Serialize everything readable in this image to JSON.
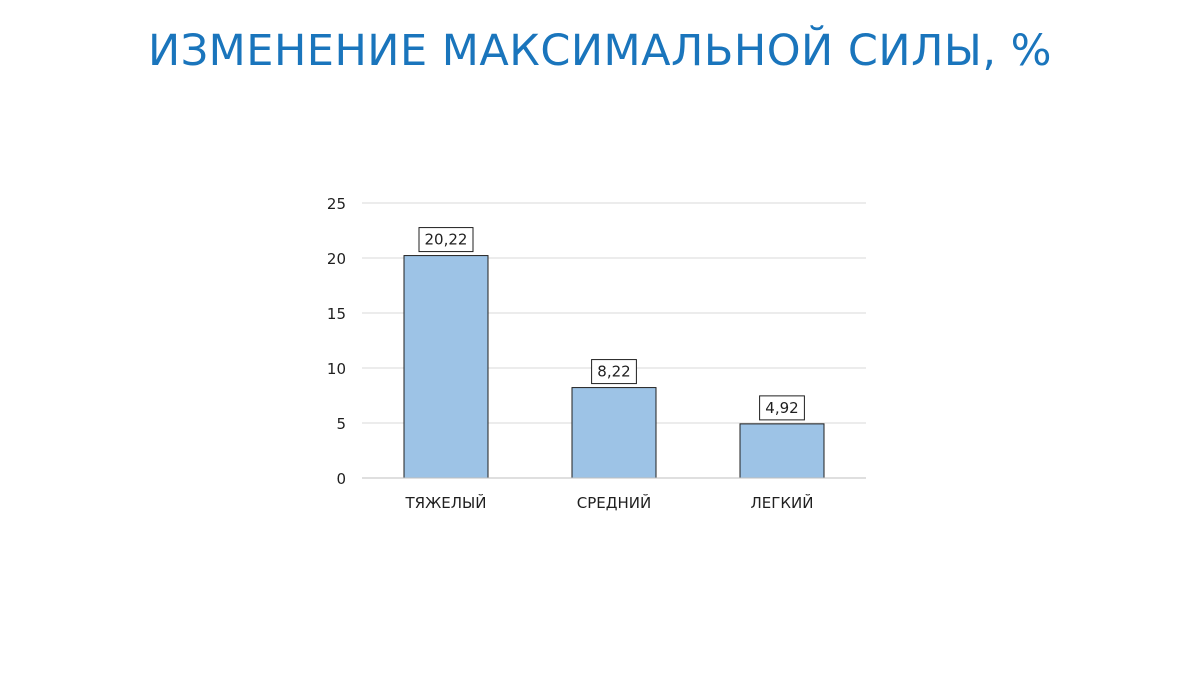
{
  "slide": {
    "title": "ИЗМЕНЕНИЕ МАКСИМАЛЬНОЙ СИЛЫ, %"
  },
  "chart_data": {
    "type": "bar",
    "title": "ИЗМЕНЕНИЕ МАКСИМАЛЬНОЙ СИЛЫ, %",
    "categories": [
      "ТЯЖЕЛЫЙ",
      "СРЕДНИЙ",
      "ЛЕГКИЙ"
    ],
    "values": [
      20.22,
      8.22,
      4.92
    ],
    "data_labels": [
      "20,22",
      "8,22",
      "4,92"
    ],
    "ylim": [
      0,
      25
    ],
    "yticks": [
      0,
      5,
      10,
      15,
      20,
      25
    ],
    "xlabel": "",
    "ylabel": "",
    "grid": true,
    "legend": "none",
    "colors": {
      "bar_fill": "#9dc3e6",
      "bar_stroke": "#1f1f1f",
      "grid": "#d9d9d9",
      "axis": "#bfbfbf",
      "text": "#1f1f1f",
      "title": "#1a75bc"
    }
  }
}
